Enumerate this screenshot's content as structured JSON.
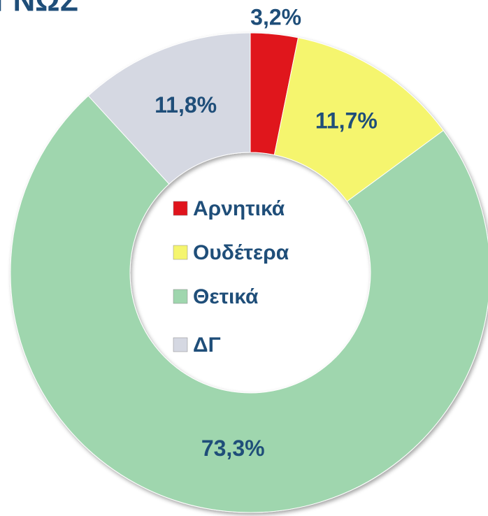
{
  "chart_data": {
    "type": "donut",
    "title": "ΓΝΩΣ",
    "categories": [
      "Αρνητικά",
      "Ουδέτερα",
      "Θετικά",
      "ΔΓ"
    ],
    "values": [
      3.2,
      11.7,
      73.3,
      11.8
    ],
    "value_labels": [
      "3,2%",
      "11,7%",
      "73,3%",
      "11,8%"
    ],
    "colors": [
      "#e0141c",
      "#f5f56e",
      "#9fd6ae",
      "#d5d8e2"
    ],
    "legend": "center"
  }
}
